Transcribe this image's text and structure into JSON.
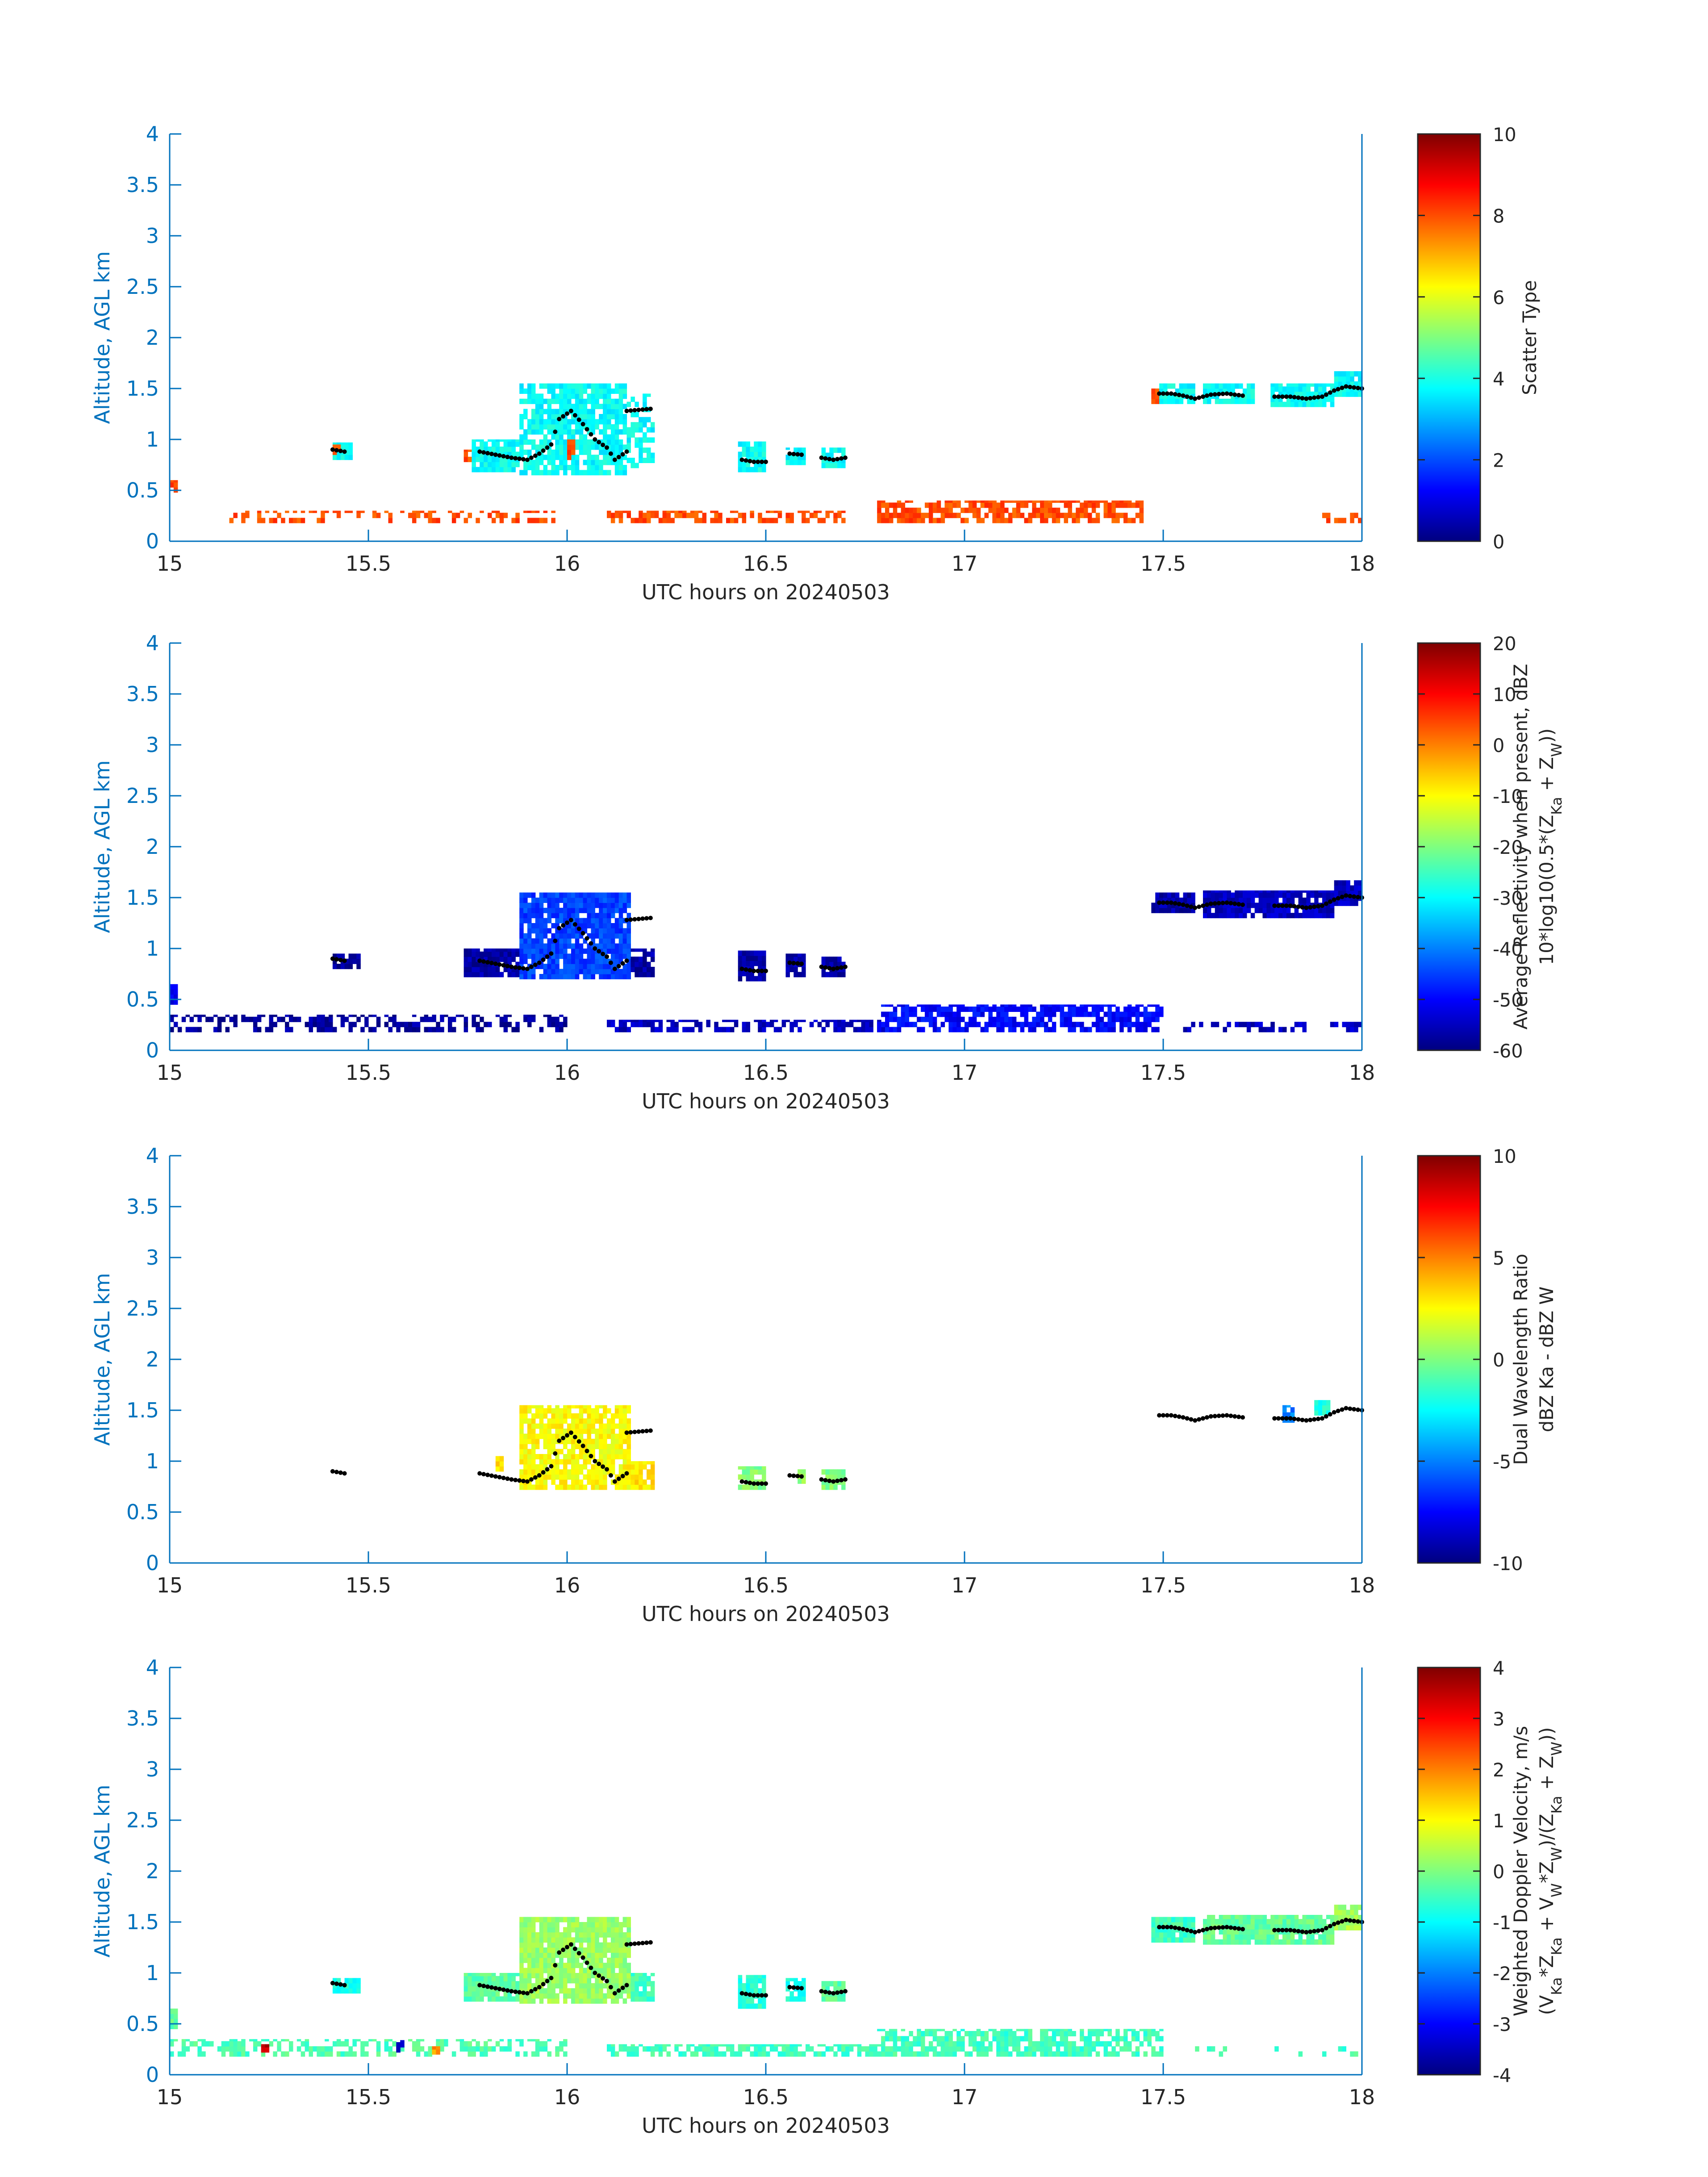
{
  "chart_data": [
    {
      "type": "heatmap",
      "name": "scatter-type",
      "xlabel": "UTC hours on 20240503",
      "ylabel": "Altitude, AGL km",
      "xlim": [
        15,
        18
      ],
      "ylim": [
        0,
        4
      ],
      "xticks": [
        "15",
        "15.5",
        "16",
        "16.5",
        "17",
        "17.5",
        "18"
      ],
      "yticks": [
        "0",
        "0.5",
        "1",
        "1.5",
        "2",
        "2.5",
        "3",
        "3.5",
        "4"
      ],
      "colorbar": {
        "label_lines": [
          "Scatter Type"
        ],
        "range": [
          0,
          10
        ],
        "ticks": [
          "0",
          "2",
          "4",
          "6",
          "8",
          "10"
        ]
      },
      "clusters": [
        {
          "x0": 15.0,
          "x1": 15.02,
          "y0": 0.48,
          "y1": 0.6,
          "value": 8
        },
        {
          "x0": 15.15,
          "x1": 15.97,
          "y0": 0.18,
          "y1": 0.3,
          "value": 8,
          "density": 0.35
        },
        {
          "x0": 16.1,
          "x1": 16.7,
          "y0": 0.18,
          "y1": 0.3,
          "value": 8,
          "density": 0.55
        },
        {
          "x0": 16.78,
          "x1": 17.45,
          "y0": 0.18,
          "y1": 0.4,
          "value": 8,
          "density": 0.7
        },
        {
          "x0": 17.88,
          "x1": 18.0,
          "y0": 0.18,
          "y1": 0.28,
          "value": 8,
          "density": 0.3
        },
        {
          "x0": 15.41,
          "x1": 15.46,
          "y0": 0.8,
          "y1": 0.97,
          "value": 3.8
        },
        {
          "x0": 15.41,
          "x1": 15.43,
          "y0": 0.85,
          "y1": 0.95,
          "value": 8
        },
        {
          "x0": 15.74,
          "x1": 15.76,
          "y0": 0.78,
          "y1": 0.9,
          "value": 8
        },
        {
          "x0": 15.76,
          "x1": 15.88,
          "y0": 0.68,
          "y1": 1.0,
          "value": 3.8
        },
        {
          "x0": 15.88,
          "x1": 16.15,
          "y0": 0.65,
          "y1": 1.55,
          "value": 3.8,
          "density": 0.85
        },
        {
          "x0": 16.0,
          "x1": 16.02,
          "y0": 0.8,
          "y1": 1.0,
          "value": 8
        },
        {
          "x0": 16.15,
          "x1": 16.22,
          "y0": 0.72,
          "y1": 1.45,
          "value": 3.8,
          "density": 0.5
        },
        {
          "x0": 16.43,
          "x1": 16.5,
          "y0": 0.68,
          "y1": 0.98,
          "value": 3.8
        },
        {
          "x0": 16.55,
          "x1": 16.6,
          "y0": 0.75,
          "y1": 0.92,
          "value": 3.8
        },
        {
          "x0": 16.64,
          "x1": 16.7,
          "y0": 0.72,
          "y1": 0.92,
          "value": 3.8
        },
        {
          "x0": 17.47,
          "x1": 17.49,
          "y0": 1.35,
          "y1": 1.5,
          "value": 8
        },
        {
          "x0": 17.49,
          "x1": 17.58,
          "y0": 1.35,
          "y1": 1.55,
          "value": 3.8
        },
        {
          "x0": 17.6,
          "x1": 17.73,
          "y0": 1.35,
          "y1": 1.55,
          "value": 3.8
        },
        {
          "x0": 17.77,
          "x1": 17.93,
          "y0": 1.32,
          "y1": 1.55,
          "value": 3.8
        },
        {
          "x0": 17.93,
          "x1": 18.0,
          "y0": 1.42,
          "y1": 1.67,
          "value": 3.8
        }
      ]
    },
    {
      "type": "heatmap",
      "name": "reflectivity",
      "xlabel": "UTC hours on 20240503",
      "ylabel": "Altitude, AGL km",
      "xlim": [
        15,
        18
      ],
      "ylim": [
        0,
        4
      ],
      "xticks": [
        "15",
        "15.5",
        "16",
        "16.5",
        "17",
        "17.5",
        "18"
      ],
      "yticks": [
        "0",
        "0.5",
        "1",
        "1.5",
        "2",
        "2.5",
        "3",
        "3.5",
        "4"
      ],
      "colorbar": {
        "label_lines": [
          "Average Reflectivity when present, dBZ",
          "10*log10(0.5*(Z_Ka + Z_W))"
        ],
        "range": [
          -60,
          20
        ],
        "ticks": [
          "-60",
          "-50",
          "-40",
          "-30",
          "-20",
          "-10",
          "0",
          "10",
          "20"
        ]
      },
      "clusters": [
        {
          "x0": 15.0,
          "x1": 15.02,
          "y0": 0.45,
          "y1": 0.65,
          "value": -52
        },
        {
          "x0": 15.0,
          "x1": 16.0,
          "y0": 0.18,
          "y1": 0.35,
          "value": -58,
          "density": 0.45
        },
        {
          "x0": 16.1,
          "x1": 16.8,
          "y0": 0.18,
          "y1": 0.3,
          "value": -55,
          "density": 0.6
        },
        {
          "x0": 16.78,
          "x1": 17.5,
          "y0": 0.18,
          "y1": 0.45,
          "value": -50,
          "density": 0.7
        },
        {
          "x0": 17.55,
          "x1": 18.0,
          "y0": 0.18,
          "y1": 0.28,
          "value": -55,
          "density": 0.3
        },
        {
          "x0": 15.41,
          "x1": 15.48,
          "y0": 0.8,
          "y1": 0.95,
          "value": -58
        },
        {
          "x0": 15.74,
          "x1": 15.88,
          "y0": 0.72,
          "y1": 1.0,
          "value": -57
        },
        {
          "x0": 15.88,
          "x1": 16.16,
          "y0": 0.7,
          "y1": 1.55,
          "value": -45,
          "density": 0.9
        },
        {
          "x0": 16.16,
          "x1": 16.22,
          "y0": 0.72,
          "y1": 1.0,
          "value": -57
        },
        {
          "x0": 16.43,
          "x1": 16.5,
          "y0": 0.68,
          "y1": 0.98,
          "value": -57
        },
        {
          "x0": 16.55,
          "x1": 16.6,
          "y0": 0.72,
          "y1": 0.95,
          "value": -57
        },
        {
          "x0": 16.64,
          "x1": 16.7,
          "y0": 0.72,
          "y1": 0.92,
          "value": -57
        },
        {
          "x0": 17.47,
          "x1": 17.58,
          "y0": 1.35,
          "y1": 1.55,
          "value": -57
        },
        {
          "x0": 17.6,
          "x1": 17.93,
          "y0": 1.3,
          "y1": 1.57,
          "value": -55
        },
        {
          "x0": 17.93,
          "x1": 18.0,
          "y0": 1.42,
          "y1": 1.67,
          "value": -55
        }
      ]
    },
    {
      "type": "heatmap",
      "name": "dual-wavelength-ratio",
      "xlabel": "UTC hours on 20240503",
      "ylabel": "Altitude, AGL km",
      "xlim": [
        15,
        18
      ],
      "ylim": [
        0,
        4
      ],
      "xticks": [
        "15",
        "15.5",
        "16",
        "16.5",
        "17",
        "17.5",
        "18"
      ],
      "yticks": [
        "0",
        "0.5",
        "1",
        "1.5",
        "2",
        "2.5",
        "3",
        "3.5",
        "4"
      ],
      "colorbar": {
        "label_lines": [
          "Dual Wavelength Ratio",
          "dBZ Ka - dBZ W"
        ],
        "range": [
          -10,
          10
        ],
        "ticks": [
          "-10",
          "-5",
          "0",
          "5",
          "10"
        ]
      },
      "clusters": [
        {
          "x0": 15.82,
          "x1": 15.84,
          "y0": 0.9,
          "y1": 1.05,
          "value": 3
        },
        {
          "x0": 15.88,
          "x1": 16.16,
          "y0": 0.72,
          "y1": 1.55,
          "value": 2.5,
          "density": 0.85
        },
        {
          "x0": 16.16,
          "x1": 16.22,
          "y0": 0.72,
          "y1": 1.0,
          "value": 3
        },
        {
          "x0": 16.43,
          "x1": 16.5,
          "y0": 0.72,
          "y1": 0.95,
          "value": 0
        },
        {
          "x0": 16.58,
          "x1": 16.6,
          "y0": 0.78,
          "y1": 0.92,
          "value": 0.5
        },
        {
          "x0": 16.64,
          "x1": 16.7,
          "y0": 0.72,
          "y1": 0.92,
          "value": 0
        },
        {
          "x0": 17.8,
          "x1": 17.83,
          "y0": 1.38,
          "y1": 1.55,
          "value": -5
        },
        {
          "x0": 17.88,
          "x1": 17.92,
          "y0": 1.45,
          "y1": 1.6,
          "value": -2
        }
      ]
    },
    {
      "type": "heatmap",
      "name": "doppler-velocity",
      "xlabel": "UTC hours on 20240503",
      "ylabel": "Altitude, AGL km",
      "xlim": [
        15,
        18
      ],
      "ylim": [
        0,
        4
      ],
      "xticks": [
        "15",
        "15.5",
        "16",
        "16.5",
        "17",
        "17.5",
        "18"
      ],
      "yticks": [
        "0",
        "0.5",
        "1",
        "1.5",
        "2",
        "2.5",
        "3",
        "3.5",
        "4"
      ],
      "colorbar": {
        "label_lines": [
          "Weighted Doppler Velocity, m/s",
          "(V_Ka*Z_Ka + V_W*Z_W)/(Z_Ka + Z_W))"
        ],
        "range": [
          -4,
          4
        ],
        "ticks": [
          "-4",
          "-3",
          "-2",
          "-1",
          "0",
          "1",
          "2",
          "3",
          "4"
        ]
      },
      "clusters": [
        {
          "x0": 15.0,
          "x1": 15.02,
          "y0": 0.45,
          "y1": 0.65,
          "value": -0.3
        },
        {
          "x0": 15.0,
          "x1": 16.0,
          "y0": 0.18,
          "y1": 0.35,
          "value": -0.4,
          "density": 0.45
        },
        {
          "x0": 15.23,
          "x1": 15.25,
          "y0": 0.22,
          "y1": 0.3,
          "value": 3.5
        },
        {
          "x0": 15.57,
          "x1": 15.59,
          "y0": 0.22,
          "y1": 0.34,
          "value": -3.5
        },
        {
          "x0": 15.66,
          "x1": 15.68,
          "y0": 0.2,
          "y1": 0.28,
          "value": 1.8
        },
        {
          "x0": 16.1,
          "x1": 16.8,
          "y0": 0.18,
          "y1": 0.3,
          "value": -0.5,
          "density": 0.6
        },
        {
          "x0": 16.78,
          "x1": 17.5,
          "y0": 0.18,
          "y1": 0.45,
          "value": -0.5,
          "density": 0.7
        },
        {
          "x0": 17.55,
          "x1": 18.0,
          "y0": 0.18,
          "y1": 0.28,
          "value": -0.5,
          "density": 0.3
        },
        {
          "x0": 15.41,
          "x1": 15.48,
          "y0": 0.8,
          "y1": 0.95,
          "value": -0.8
        },
        {
          "x0": 15.74,
          "x1": 15.88,
          "y0": 0.72,
          "y1": 1.0,
          "value": -0.3
        },
        {
          "x0": 15.88,
          "x1": 16.16,
          "y0": 0.7,
          "y1": 1.55,
          "value": 0.2,
          "density": 0.9
        },
        {
          "x0": 16.16,
          "x1": 16.22,
          "y0": 0.72,
          "y1": 1.0,
          "value": -0.5
        },
        {
          "x0": 16.43,
          "x1": 16.5,
          "y0": 0.65,
          "y1": 0.98,
          "value": -0.7
        },
        {
          "x0": 16.55,
          "x1": 16.6,
          "y0": 0.72,
          "y1": 0.95,
          "value": -0.8
        },
        {
          "x0": 16.64,
          "x1": 16.7,
          "y0": 0.72,
          "y1": 0.92,
          "value": -0.3
        },
        {
          "x0": 17.47,
          "x1": 17.58,
          "y0": 1.3,
          "y1": 1.55,
          "value": -0.5
        },
        {
          "x0": 17.6,
          "x1": 17.93,
          "y0": 1.28,
          "y1": 1.57,
          "value": -0.2
        },
        {
          "x0": 17.93,
          "x1": 18.0,
          "y0": 1.42,
          "y1": 1.67,
          "value": 0.3
        }
      ]
    }
  ],
  "shared_trace": {
    "label": "black dotted trace (cloud base)",
    "segments": [
      [
        [
          15.41,
          0.9
        ],
        [
          15.44,
          0.88
        ]
      ],
      [
        [
          15.78,
          0.88
        ],
        [
          15.82,
          0.85
        ],
        [
          15.86,
          0.82
        ],
        [
          15.9,
          0.8
        ],
        [
          15.93,
          0.86
        ],
        [
          15.96,
          0.95
        ],
        [
          15.98,
          1.2
        ],
        [
          16.01,
          1.28
        ],
        [
          16.04,
          1.15
        ],
        [
          16.07,
          1.0
        ],
        [
          16.1,
          0.92
        ],
        [
          16.12,
          0.8
        ],
        [
          16.15,
          0.88
        ],
        [
          16.15,
          1.28
        ],
        [
          16.21,
          1.3
        ]
      ],
      [
        [
          16.44,
          0.8
        ],
        [
          16.47,
          0.78
        ],
        [
          16.5,
          0.78
        ]
      ],
      [
        [
          16.56,
          0.86
        ],
        [
          16.59,
          0.85
        ]
      ],
      [
        [
          16.64,
          0.82
        ],
        [
          16.67,
          0.8
        ],
        [
          16.7,
          0.82
        ]
      ],
      [
        [
          17.49,
          1.45
        ],
        [
          17.52,
          1.45
        ],
        [
          17.55,
          1.43
        ],
        [
          17.58,
          1.4
        ],
        [
          17.62,
          1.44
        ],
        [
          17.66,
          1.45
        ],
        [
          17.7,
          1.43
        ]
      ],
      [
        [
          17.78,
          1.42
        ],
        [
          17.82,
          1.42
        ],
        [
          17.86,
          1.4
        ],
        [
          17.9,
          1.42
        ],
        [
          17.93,
          1.48
        ],
        [
          17.96,
          1.52
        ],
        [
          18.0,
          1.5
        ]
      ]
    ]
  }
}
